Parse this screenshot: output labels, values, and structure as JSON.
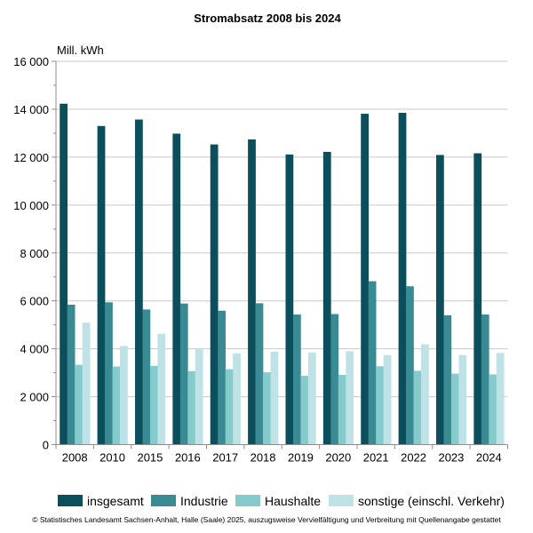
{
  "chart_data": {
    "type": "bar",
    "title": "Stromabsatz 2008 bis 2024",
    "ylabel": "Mill. kWh",
    "xlabel": "",
    "ylim": [
      0,
      16000
    ],
    "yticks": [
      0,
      2000,
      4000,
      6000,
      8000,
      10000,
      12000,
      14000,
      16000
    ],
    "ytick_labels": [
      "0",
      "2 000",
      "4 000",
      "6 000",
      "8 000",
      "10 000",
      "12 000",
      "14 000",
      "16 000"
    ],
    "minor_yticks_step": 1000,
    "grid": true,
    "legend_position": "bottom",
    "categories": [
      "2008",
      "2010",
      "2015",
      "2016",
      "2017",
      "2018",
      "2019",
      "2020",
      "2021",
      "2022",
      "2023",
      "2024"
    ],
    "series": [
      {
        "name": "insgesamt",
        "color": "#0b4f5c",
        "values": [
          14230,
          13300,
          13570,
          12980,
          12530,
          12740,
          12110,
          12220,
          13810,
          13850,
          12090,
          12160
        ]
      },
      {
        "name": "Industrie",
        "color": "#3a8a93",
        "values": [
          5840,
          5940,
          5640,
          5890,
          5590,
          5900,
          5430,
          5450,
          6820,
          6610,
          5400,
          5430
        ]
      },
      {
        "name": "Haushalte",
        "color": "#85cbcc",
        "values": [
          3330,
          3260,
          3290,
          3070,
          3150,
          3020,
          2870,
          2910,
          3270,
          3080,
          2960,
          2930
        ]
      },
      {
        "name": "sonstige (einschl. Verkehr)",
        "color": "#bfe2e6",
        "values": [
          5090,
          4120,
          4630,
          4010,
          3810,
          3880,
          3850,
          3900,
          3740,
          4190,
          3740,
          3830
        ]
      }
    ]
  },
  "footer": "© Statistisches Landesamt Sachsen-Anhalt, Halle (Saale) 2025, auszugsweise Vervielfältigung und Verbreitung mit Quellenangabe gestattet"
}
